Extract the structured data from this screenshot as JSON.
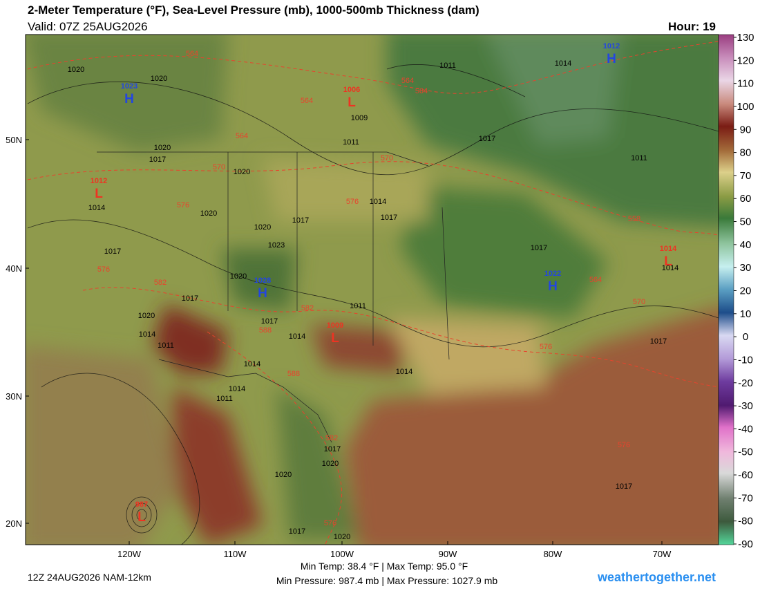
{
  "header": {
    "title": "2-Meter Temperature (°F), Sea-Level Pressure (mb), 1000-500mb Thickness (dam)",
    "valid": "Valid: 07Z 25AUG2026",
    "hour": "Hour: 19"
  },
  "map": {
    "lat_labels": [
      "50N",
      "40N",
      "30N",
      "20N"
    ],
    "lon_labels": [
      "120W",
      "110W",
      "100W",
      "90W",
      "80W",
      "70W"
    ],
    "pressure_centers": [
      {
        "letter": "H",
        "value": "1023"
      },
      {
        "letter": "H",
        "value": "1012"
      },
      {
        "letter": "H",
        "value": "1028"
      },
      {
        "letter": "H",
        "value": "1022"
      },
      {
        "letter": "L",
        "value": "1006"
      },
      {
        "letter": "L",
        "value": "1012"
      },
      {
        "letter": "L",
        "value": "1009"
      },
      {
        "letter": "L",
        "value": "1014"
      },
      {
        "letter": "L",
        "value": "987"
      }
    ],
    "isobar_labels": [
      "1020",
      "1020",
      "1011",
      "1014",
      "1020",
      "1017",
      "1020",
      "1011",
      "1009",
      "1017",
      "1011",
      "1014",
      "1020",
      "1020",
      "1017",
      "1014",
      "1017",
      "1017",
      "1023",
      "1020",
      "1017",
      "1011",
      "1020",
      "1014",
      "1011",
      "1017",
      "1014",
      "1014",
      "1014",
      "1014",
      "1011",
      "1017",
      "1014",
      "1017",
      "1017",
      "1020",
      "1020",
      "1017",
      "1017",
      "1020"
    ],
    "thickness_labels": [
      "564",
      "564",
      "564",
      "564",
      "564",
      "570",
      "570",
      "576",
      "576",
      "576",
      "582",
      "582",
      "588",
      "588",
      "576",
      "582",
      "576",
      "558",
      "564",
      "570",
      "576"
    ]
  },
  "colorbar": {
    "ticks": [
      130,
      120,
      110,
      100,
      90,
      80,
      70,
      60,
      50,
      40,
      30,
      20,
      10,
      0,
      -10,
      -20,
      -30,
      -40,
      -50,
      -60,
      -70,
      -80,
      -90
    ]
  },
  "footer": {
    "run": "12Z 24AUG2026 NAM-12km",
    "temp_range": "Min Temp:  38.4 °F | Max Temp:  95.0 °F",
    "pressure_range": "Min Pressure: 987.4 mb | Max Pressure: 1027.9 mb",
    "credit": "weathertogether.net"
  }
}
